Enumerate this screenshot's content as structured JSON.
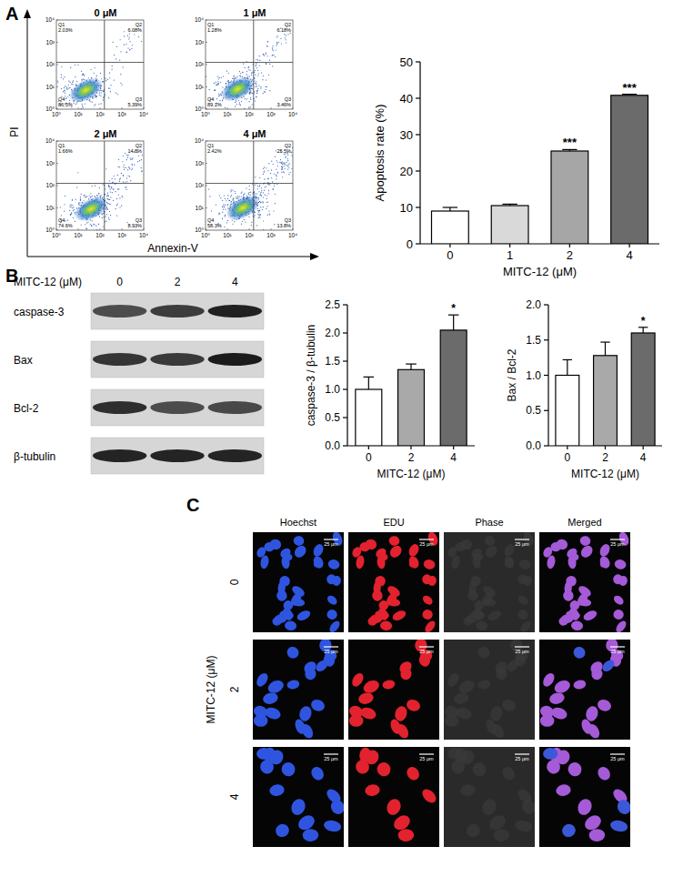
{
  "figure_labels": [
    "A",
    "B",
    "C"
  ],
  "flow_cytometry": {
    "x_label": "Annexin-V",
    "y_label": "PI",
    "lim": [
      0,
      4
    ],
    "ticks": [
      {
        "value": 0,
        "label": "10⁰"
      },
      {
        "value": 1,
        "label": "10¹"
      },
      {
        "value": 2,
        "label": "10²"
      },
      {
        "value": 3,
        "label": "10³"
      },
      {
        "value": 4,
        "label": "10⁴"
      }
    ],
    "gate": {
      "x": 2.2,
      "y": 2.1
    },
    "plots": [
      {
        "title": "0 μM",
        "quadrants": [
          {
            "name": "Q1",
            "value": "2.03%"
          },
          {
            "name": "Q2",
            "value": "6.08%"
          },
          {
            "name": "Q3",
            "value": "5.39%"
          },
          {
            "name": "Q4",
            "value": "86.5%"
          }
        ]
      },
      {
        "title": "1 μM",
        "quadrants": [
          {
            "name": "Q1",
            "value": "1.28%"
          },
          {
            "name": "Q2",
            "value": "6.18%"
          },
          {
            "name": "Q3",
            "value": "3.46%"
          },
          {
            "name": "Q4",
            "value": "89.1%"
          }
        ]
      },
      {
        "title": "2 μM",
        "quadrants": [
          {
            "name": "Q1",
            "value": "1.66%"
          },
          {
            "name": "Q2",
            "value": "14.8%"
          },
          {
            "name": "Q3",
            "value": "8.93%"
          },
          {
            "name": "Q4",
            "value": "74.6%"
          }
        ]
      },
      {
        "title": "4 μM",
        "quadrants": [
          {
            "name": "Q1",
            "value": "2.42%"
          },
          {
            "name": "Q2",
            "value": "25.5%"
          },
          {
            "name": "Q3",
            "value": "13.8%"
          },
          {
            "name": "Q4",
            "value": "58.3%"
          }
        ]
      }
    ]
  },
  "chart_data": [
    {
      "type": "bar",
      "x_label": "MITC-12 (μM)",
      "y_label": "Apoptosis rate (%)",
      "categories": [
        "0",
        "1",
        "2",
        "4"
      ],
      "values": [
        9,
        10.5,
        25.5,
        40.8
      ],
      "errors": [
        1.0,
        0.4,
        0.4,
        0.3
      ],
      "significance": [
        null,
        null,
        "***",
        "***"
      ],
      "colors": [
        "#ffffff",
        "#d9d9d9",
        "#a6a6a6",
        "#6b6b6b"
      ],
      "ylim": [
        0,
        50
      ],
      "yticks": [
        0,
        10,
        20,
        30,
        40,
        50
      ]
    },
    {
      "type": "bar",
      "x_label": "MITC-12 (μM)",
      "y_label": "caspase-3 / β-tubulin",
      "categories": [
        "0",
        "2",
        "4"
      ],
      "values": [
        1.0,
        1.35,
        2.05
      ],
      "errors": [
        0.22,
        0.1,
        0.27
      ],
      "significance": [
        null,
        null,
        "*"
      ],
      "colors": [
        "#ffffff",
        "#a9a9a9",
        "#6b6b6b"
      ],
      "ylim": [
        0,
        2.5
      ],
      "yticks": [
        {
          "value": 0,
          "label": "0.0"
        },
        {
          "value": 0.5,
          "label": "0.5"
        },
        {
          "value": 1,
          "label": "1.0"
        },
        {
          "value": 1.5,
          "label": "1.5"
        },
        {
          "value": 2,
          "label": "2.0"
        },
        {
          "value": 2.5,
          "label": "2.5"
        }
      ]
    },
    {
      "type": "bar",
      "x_label": "MITC-12 (μM)",
      "y_label": "Bax / Bcl-2",
      "categories": [
        "0",
        "2",
        "4"
      ],
      "values": [
        1.0,
        1.28,
        1.6
      ],
      "errors": [
        0.22,
        0.19,
        0.08
      ],
      "significance": [
        null,
        null,
        "*"
      ],
      "colors": [
        "#ffffff",
        "#a9a9a9",
        "#6b6b6b"
      ],
      "ylim": [
        0,
        2
      ],
      "yticks": [
        {
          "value": 0,
          "label": "0.0"
        },
        {
          "value": 0.5,
          "label": "0.5"
        },
        {
          "value": 1,
          "label": "1.0"
        },
        {
          "value": 1.5,
          "label": "1.5"
        },
        {
          "value": 2,
          "label": "2.0"
        }
      ]
    }
  ],
  "western_blot": {
    "header": "MITC-12 (μM)",
    "lanes": [
      "0",
      "2",
      "4"
    ],
    "rows": [
      "caspase-3",
      "Bax",
      "Bcl-2",
      "β-tubulin"
    ]
  },
  "microscopy": {
    "row_title": "MITC-12 (μM)",
    "rows": [
      "0",
      "2",
      "4"
    ],
    "columns": [
      "Hoechst",
      "EDU",
      "Phase",
      "Merged"
    ],
    "scale_bar": "25 μm"
  }
}
